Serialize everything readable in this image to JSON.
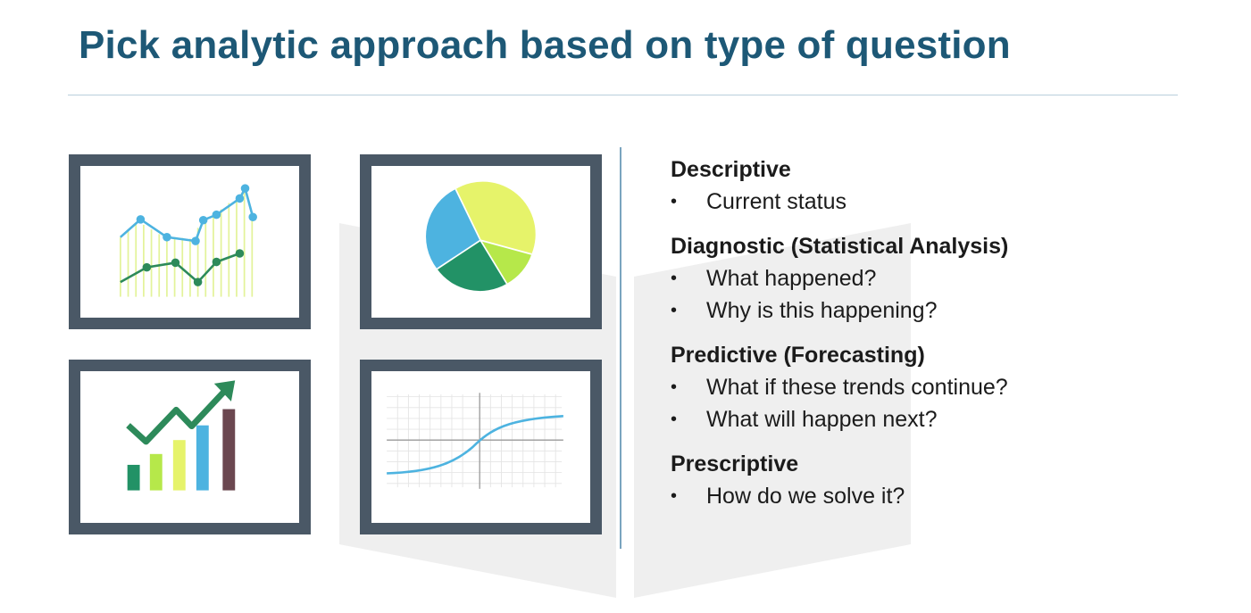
{
  "slide": {
    "title": "Pick analytic approach based on type of question"
  },
  "illustrations": [
    {
      "id": "line",
      "icon": "line-chart-icon"
    },
    {
      "id": "pie",
      "icon": "pie-chart-icon"
    },
    {
      "id": "bar",
      "icon": "bar-chart-trend-icon"
    },
    {
      "id": "curve",
      "icon": "s-curve-graph-icon"
    }
  ],
  "sections": [
    {
      "heading": "Descriptive",
      "bullets": [
        "Current status"
      ]
    },
    {
      "heading": "Diagnostic (Statistical Analysis)",
      "bullets": [
        "What happened?",
        "Why is this happening?"
      ]
    },
    {
      "heading": "Predictive (Forecasting)",
      "bullets": [
        "What if these trends continue?",
        "What will happen next?"
      ]
    },
    {
      "heading": "Prescriptive",
      "bullets": [
        "How do we solve it?"
      ]
    }
  ],
  "colors": {
    "title": "#1d5876",
    "frame": "#4a5866",
    "blue": "#4db3e0",
    "green_dark": "#2d8a5a",
    "green_mid": "#229266",
    "yellow": "#e6f36a",
    "lime": "#b6e84a",
    "maroon": "#6b4750",
    "divider": "#7aa4bf"
  }
}
